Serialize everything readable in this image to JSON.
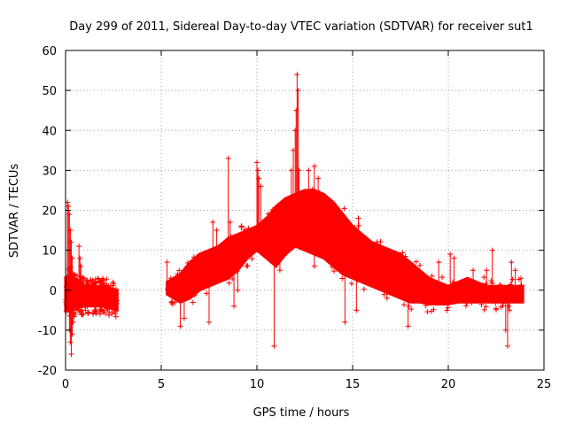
{
  "chart_data": {
    "type": "scatter",
    "title": "Day 299 of 2011, Sidereal Day-to-day VTEC variation (SDTVAR) for receiver sut1",
    "xlabel": "GPS time / hours",
    "ylabel": "SDTVAR / TECUs",
    "xlim": [
      0,
      25
    ],
    "ylim": [
      -20,
      60
    ],
    "xticks": [
      0,
      5,
      10,
      15,
      20,
      25
    ],
    "yticks": [
      -20,
      -10,
      0,
      10,
      20,
      30,
      40,
      50,
      60
    ],
    "grid": true,
    "marker": "+",
    "color": "#ff0000",
    "envelope": {
      "x": [
        0.0,
        0.3,
        0.5,
        1.0,
        1.5,
        2.0,
        2.7
      ],
      "low": [
        -5,
        -5,
        -4.5,
        -4,
        -4,
        -4,
        -5
      ],
      "high": [
        3,
        4,
        3,
        1,
        1,
        1,
        0
      ]
    },
    "envelope2": {
      "x": [
        5.3,
        6.0,
        6.5,
        7.0,
        7.5,
        8.0,
        8.5,
        9.0,
        9.5,
        10.0,
        10.5,
        11.0,
        11.5,
        12.0,
        12.5,
        13.0,
        13.5,
        14.0,
        14.5,
        15.0,
        15.5,
        16.0,
        16.5,
        17.0,
        17.5,
        18.0,
        18.5,
        19.0,
        19.5,
        20.0,
        20.5,
        21.0,
        21.5,
        22.0,
        22.5,
        23.0,
        23.5,
        23.9
      ],
      "low": [
        -1,
        -3,
        -2,
        0,
        1,
        2,
        3,
        5,
        8,
        10,
        8,
        6,
        9,
        11,
        10,
        9,
        8,
        6,
        4,
        3,
        2,
        1,
        0,
        -1,
        -2,
        -3,
        -3,
        -3.5,
        -3.5,
        -3.5,
        -3,
        -3,
        -3,
        -3,
        -3,
        -3,
        -3,
        -3
      ],
      "high": [
        2,
        4,
        7,
        9,
        10,
        11,
        13,
        14,
        15,
        16,
        18,
        21,
        23,
        24,
        25,
        25,
        24,
        22,
        19,
        16,
        14,
        12,
        11,
        10,
        9,
        7,
        5,
        3,
        2,
        1,
        2,
        3,
        2,
        1,
        1,
        1,
        1,
        1
      ]
    },
    "outliers": [
      {
        "x": 0.1,
        "y": 22
      },
      {
        "x": 0.15,
        "y": 21
      },
      {
        "x": 0.2,
        "y": 19
      },
      {
        "x": 0.25,
        "y": 15
      },
      {
        "x": 0.3,
        "y": 12
      },
      {
        "x": 0.35,
        "y": 8
      },
      {
        "x": 0.2,
        "y": -10
      },
      {
        "x": 0.25,
        "y": -13
      },
      {
        "x": 0.3,
        "y": -16
      },
      {
        "x": 0.35,
        "y": -11
      },
      {
        "x": 0.4,
        "y": -8
      },
      {
        "x": 0.7,
        "y": 11
      },
      {
        "x": 0.75,
        "y": 8
      },
      {
        "x": 0.8,
        "y": 6
      },
      {
        "x": 5.3,
        "y": 7
      },
      {
        "x": 5.5,
        "y": 3
      },
      {
        "x": 6.0,
        "y": -9
      },
      {
        "x": 6.2,
        "y": -7
      },
      {
        "x": 7.5,
        "y": -8
      },
      {
        "x": 7.7,
        "y": 17
      },
      {
        "x": 7.9,
        "y": 15
      },
      {
        "x": 8.5,
        "y": 33
      },
      {
        "x": 8.6,
        "y": 17
      },
      {
        "x": 8.8,
        "y": -4
      },
      {
        "x": 9.0,
        "y": 0
      },
      {
        "x": 9.5,
        "y": 10
      },
      {
        "x": 10.0,
        "y": 32
      },
      {
        "x": 10.05,
        "y": 30
      },
      {
        "x": 10.1,
        "y": 28
      },
      {
        "x": 10.2,
        "y": 26
      },
      {
        "x": 10.9,
        "y": -14
      },
      {
        "x": 11.2,
        "y": 5
      },
      {
        "x": 11.8,
        "y": 30
      },
      {
        "x": 11.9,
        "y": 35
      },
      {
        "x": 12.0,
        "y": 40
      },
      {
        "x": 12.05,
        "y": 45
      },
      {
        "x": 12.1,
        "y": 54
      },
      {
        "x": 12.15,
        "y": 50
      },
      {
        "x": 12.2,
        "y": 30
      },
      {
        "x": 12.7,
        "y": 30
      },
      {
        "x": 13.0,
        "y": 31
      },
      {
        "x": 13.2,
        "y": 28
      },
      {
        "x": 13.0,
        "y": 6
      },
      {
        "x": 14.6,
        "y": -8
      },
      {
        "x": 15.2,
        "y": -5
      },
      {
        "x": 15.3,
        "y": 18
      },
      {
        "x": 16.8,
        "y": -2
      },
      {
        "x": 17.5,
        "y": 3
      },
      {
        "x": 17.9,
        "y": -9
      },
      {
        "x": 19.5,
        "y": 7
      },
      {
        "x": 20.1,
        "y": 9
      },
      {
        "x": 20.3,
        "y": 8
      },
      {
        "x": 21.3,
        "y": 5
      },
      {
        "x": 22.0,
        "y": 5
      },
      {
        "x": 22.3,
        "y": 10
      },
      {
        "x": 23.0,
        "y": -10
      },
      {
        "x": 23.1,
        "y": -14
      },
      {
        "x": 23.3,
        "y": 7
      },
      {
        "x": 23.5,
        "y": 5
      },
      {
        "x": 23.2,
        "y": -5
      },
      {
        "x": 23.8,
        "y": 3
      }
    ]
  }
}
